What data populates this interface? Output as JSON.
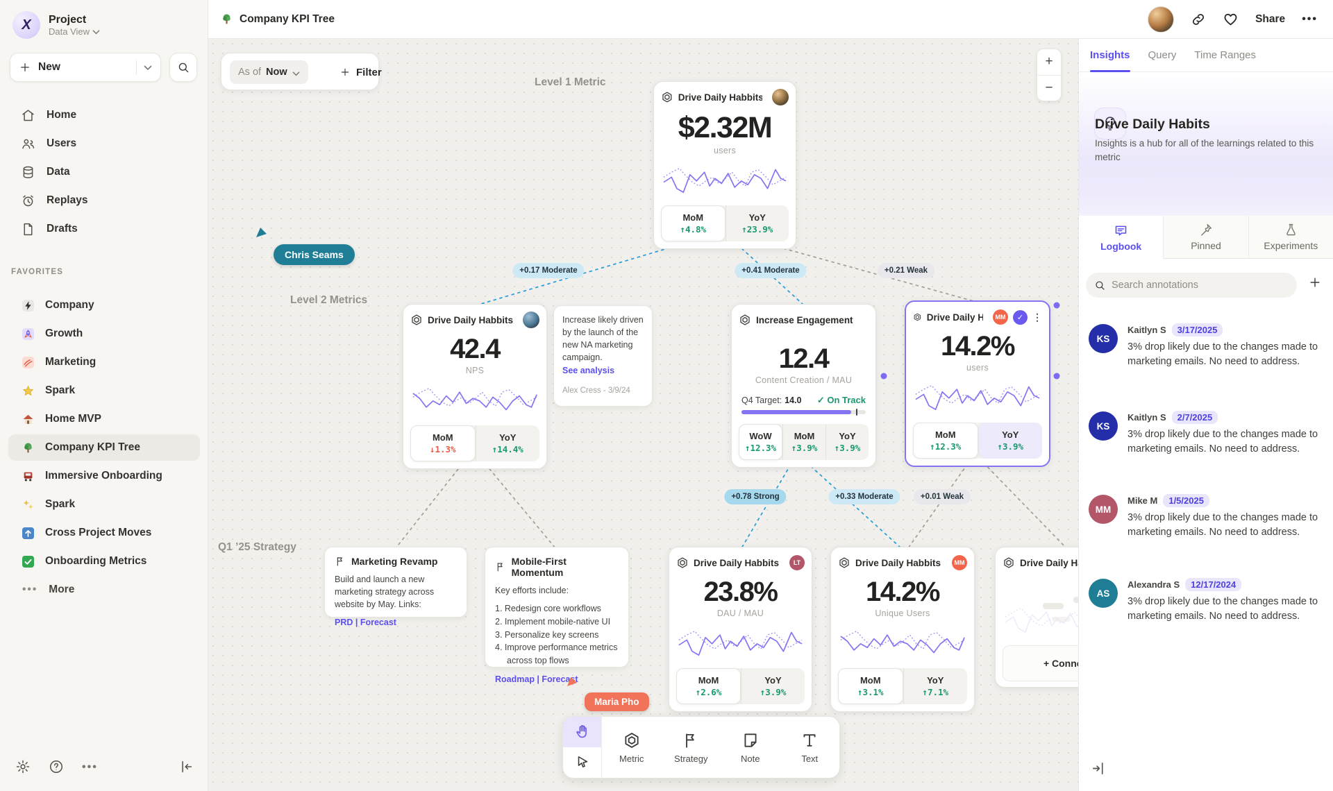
{
  "sidebar": {
    "project_title": "Project",
    "project_subtitle": "Data View",
    "new_label": "New",
    "nav": [
      {
        "label": "Home"
      },
      {
        "label": "Users"
      },
      {
        "label": "Data"
      },
      {
        "label": "Replays"
      },
      {
        "label": "Drafts"
      }
    ],
    "favorites_header": "FAVORITES",
    "favorites": [
      {
        "icon": "bolt",
        "label": "Company"
      },
      {
        "icon": "rocket",
        "label": "Growth"
      },
      {
        "icon": "scribble",
        "label": "Marketing"
      },
      {
        "icon": "star",
        "label": "Spark"
      },
      {
        "icon": "house",
        "label": "Home MVP"
      },
      {
        "icon": "tree",
        "label": "Company KPI Tree"
      },
      {
        "icon": "train",
        "label": "Immersive Onboarding"
      },
      {
        "icon": "sparkles",
        "label": "Spark"
      },
      {
        "icon": "arrowup",
        "label": "Cross Project Moves"
      },
      {
        "icon": "check",
        "label": "Onboarding Metrics"
      }
    ],
    "more_label": "More"
  },
  "topbar": {
    "title": "Company KPI Tree",
    "share_label": "Share"
  },
  "canvas": {
    "asof_prefix": "As of",
    "asof_value": "Now",
    "filter_label": "Filter",
    "level1_label": "Level 1 Metric",
    "level2_label": "Level 2 Metrics",
    "strategy_label": "Q1 ’25 Strategy",
    "cursors": {
      "chris": {
        "name": "Chris Seams",
        "color": "#1f7e95"
      },
      "maria": {
        "name": "Maria Pho",
        "color": "#f0735a"
      }
    },
    "edges": [
      {
        "label": "+0.17 Moderate",
        "strength": "moderate"
      },
      {
        "label": "+0.41 Moderate",
        "strength": "moderate"
      },
      {
        "label": "+0.21 Weak",
        "strength": "weak"
      },
      {
        "label": "+0.78 Strong",
        "strength": "strong"
      },
      {
        "label": "+0.33 Moderate",
        "strength": "moderate"
      },
      {
        "label": "+0.01 Weak",
        "strength": "weak"
      }
    ]
  },
  "cards": {
    "level1": {
      "title": "Drive Daily Habbits",
      "value": "$2.32M",
      "unit": "users",
      "stats": [
        {
          "label": "MoM",
          "value": "↑4.8%",
          "dir": "up"
        },
        {
          "label": "YoY",
          "value": "↑23.9%",
          "dir": "up"
        }
      ]
    },
    "nps": {
      "title": "Drive Daily Habbits",
      "value": "42.4",
      "unit": "NPS",
      "stats": [
        {
          "label": "MoM",
          "value": "↓1.3%",
          "dir": "down"
        },
        {
          "label": "YoY",
          "value": "↑14.4%",
          "dir": "up"
        }
      ]
    },
    "engagement": {
      "title": "Increase Engagement",
      "value": "12.4",
      "unit": "Content Creation / MAU",
      "target_prefix": "Q4 Target:",
      "target_value": "14.0",
      "status": "✓ On Track",
      "progress_pct": 88,
      "stats": [
        {
          "label": "WoW",
          "value": "↑12.3%",
          "dir": "up"
        },
        {
          "label": "MoM",
          "value": "↑3.9%",
          "dir": "up"
        },
        {
          "label": "YoY",
          "value": "↑3.9%",
          "dir": "up"
        }
      ]
    },
    "selected": {
      "title": "Drive Daily Habb..",
      "collab_badge": "MM",
      "value": "14.2%",
      "unit": "users",
      "stats": [
        {
          "label": "MoM",
          "value": "↑12.3%",
          "dir": "up"
        },
        {
          "label": "YoY",
          "value": "↑3.9%",
          "dir": "up"
        }
      ]
    },
    "dau": {
      "title": "Drive Daily Habbits",
      "collab_badge": "LT",
      "value": "23.8%",
      "unit": "DAU / MAU",
      "stats": [
        {
          "label": "MoM",
          "value": "↑2.6%",
          "dir": "up"
        },
        {
          "label": "YoY",
          "value": "↑3.9%",
          "dir": "up"
        }
      ]
    },
    "unique": {
      "title": "Drive Daily Habbits",
      "collab_badge": "MM",
      "value": "14.2%",
      "unit": "Unique Users",
      "stats": [
        {
          "label": "MoM",
          "value": "↑3.1%",
          "dir": "up"
        },
        {
          "label": "YoY",
          "value": "↑7.1%",
          "dir": "up"
        }
      ]
    },
    "ghost": {
      "title": "Drive Daily Habbits",
      "connect_label": "+ Connect"
    }
  },
  "notes": {
    "analysis": {
      "body": "Increase likely driven by the launch of the new NA marketing campaign.",
      "link": "See analysis",
      "byline": "Alex Cress - 3/9/24"
    },
    "marketing": {
      "title": "Marketing Revamp",
      "body": "Build and launch a new marketing strategy across website by May. Links:",
      "links": "PRD | Forecast"
    },
    "mobile": {
      "title": "Mobile-First Momentum",
      "intro": "Key efforts include:",
      "items": [
        "1. Redesign core workflows",
        "2. Implement mobile-native UI",
        "3. Personalize key screens",
        "4. Improve performance metrics across top flows"
      ],
      "links": "Roadmap | Forecast"
    }
  },
  "toolbar": {
    "tools": [
      {
        "label": "Metric"
      },
      {
        "label": "Strategy"
      },
      {
        "label": "Note"
      },
      {
        "label": "Text"
      }
    ]
  },
  "panel": {
    "tabs": [
      {
        "label": "Insights"
      },
      {
        "label": "Query"
      },
      {
        "label": "Time Ranges"
      }
    ],
    "hero_title": "Drive Daily Habits",
    "hero_desc": "Insights is a hub for all of the learnings related to this metric",
    "subtabs": [
      {
        "label": "Logbook"
      },
      {
        "label": "Pinned"
      },
      {
        "label": "Experiments"
      }
    ],
    "search_placeholder": "Search annotations",
    "annotations": [
      {
        "initials": "KS",
        "name": "Kaitlyn S",
        "date": "3/17/2025",
        "color": "#232ea8",
        "body": "3% drop likely due to the changes made to marketing emails. No need to address."
      },
      {
        "initials": "KS",
        "name": "Kaitlyn S",
        "date": "2/7/2025",
        "color": "#232ea8",
        "body": "3% drop likely due to the changes made to marketing emails. No need to address."
      },
      {
        "initials": "MM",
        "name": "Mike M",
        "date": "1/5/2025",
        "color": "#b25668",
        "body": "3% drop likely due to the changes made to marketing emails. No need to address."
      },
      {
        "initials": "AS",
        "name": "Alexandra S",
        "date": "12/17/2024",
        "color": "#1f7e95",
        "body": "3% drop likely due to the changes made to marketing emails. No need to address."
      }
    ]
  },
  "colors": {
    "accent": "#6a5af0",
    "sparkline": "#8374f2",
    "positive": "#19996e",
    "negative": "#e2604b",
    "edge_blue": "#2f9fd8",
    "edge_gray": "#a5a29c"
  }
}
